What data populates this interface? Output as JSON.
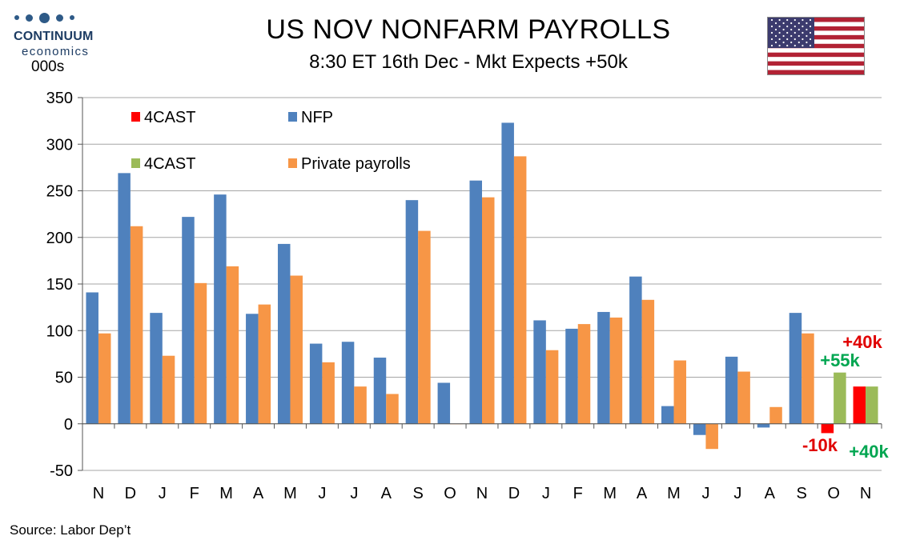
{
  "title": "US NOV NONFARM PAYROLLS",
  "subtitle": "8:30 ET 16th Dec - Mkt Expects +50k",
  "logo": {
    "word": "CONTINUUM",
    "sub": "economics"
  },
  "units": "000s",
  "source": "Source: Labor Dep’t",
  "flag": "us-flag",
  "colors": {
    "nfp": "#4f81bd",
    "private": "#f79646",
    "forecast_red": "#ff0000",
    "forecast_green": "#9bbb59",
    "annotation_red": "#e00000",
    "annotation_green": "#00a651"
  },
  "chart_data": {
    "type": "bar",
    "categories": [
      "N",
      "D",
      "J",
      "F",
      "M",
      "A",
      "M",
      "J",
      "J",
      "A",
      "S",
      "O",
      "N",
      "D",
      "J",
      "F",
      "M",
      "A",
      "M",
      "J",
      "J",
      "A",
      "S",
      "O",
      "N"
    ],
    "series": [
      {
        "name": "NFP",
        "color": "#4f81bd",
        "values": [
          141,
          269,
          119,
          222,
          246,
          118,
          193,
          86,
          88,
          71,
          240,
          44,
          261,
          323,
          111,
          102,
          120,
          158,
          19,
          -12,
          72,
          -4,
          119,
          null,
          null
        ]
      },
      {
        "name": "Private payrolls",
        "color": "#f79646",
        "values": [
          97,
          212,
          73,
          151,
          169,
          128,
          159,
          66,
          40,
          32,
          207,
          0,
          243,
          287,
          79,
          107,
          114,
          133,
          68,
          -27,
          56,
          18,
          97,
          null,
          null
        ]
      },
      {
        "name": "4CAST",
        "color": "#ff0000",
        "values": [
          null,
          null,
          null,
          null,
          null,
          null,
          null,
          null,
          null,
          null,
          null,
          null,
          null,
          null,
          null,
          null,
          null,
          null,
          null,
          null,
          null,
          null,
          null,
          -10,
          40
        ]
      },
      {
        "name": "4CAST",
        "color": "#9bbb59",
        "values": [
          null,
          null,
          null,
          null,
          null,
          null,
          null,
          null,
          null,
          null,
          null,
          null,
          null,
          null,
          null,
          null,
          null,
          null,
          null,
          null,
          null,
          null,
          null,
          55,
          40
        ]
      }
    ],
    "yticks": [
      "350",
      "300",
      "250",
      "200",
      "150",
      "100",
      "50",
      "0",
      "-50"
    ],
    "ylim": [
      -50,
      350
    ],
    "grid": true,
    "legend": [
      {
        "label": "4CAST",
        "color": "#ff0000"
      },
      {
        "label": "NFP",
        "color": "#4f81bd"
      },
      {
        "label": "4CAST",
        "color": "#9bbb59"
      },
      {
        "label": "Private payrolls",
        "color": "#f79646"
      }
    ],
    "annotations": [
      {
        "text": "+40k",
        "color": "#e00000",
        "category_index": 24
      },
      {
        "text": "+55k",
        "color": "#00a651",
        "category_index": 23
      },
      {
        "text": "-10k",
        "color": "#e00000",
        "category_index": 23
      },
      {
        "text": "+40k",
        "color": "#00a651",
        "category_index": 24
      }
    ]
  }
}
